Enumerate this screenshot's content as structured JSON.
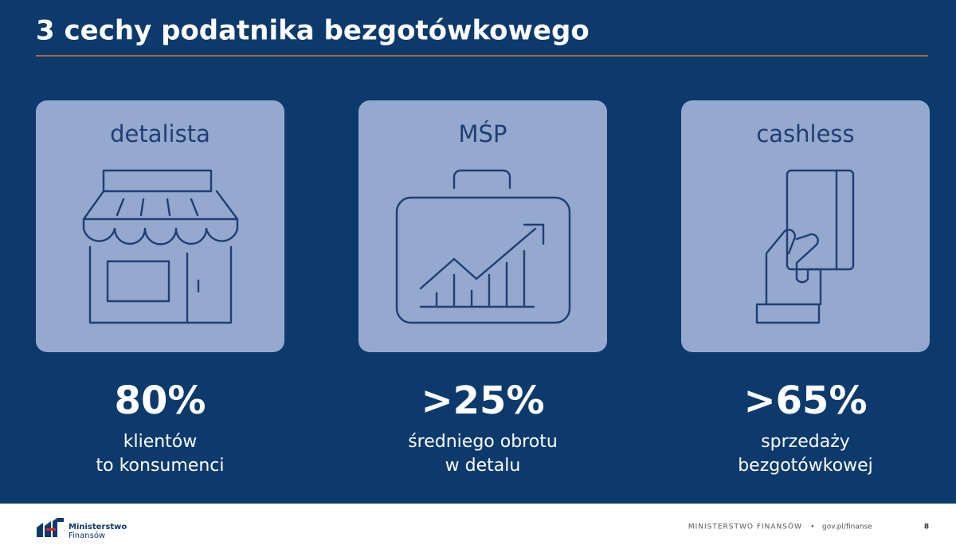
{
  "header": {
    "title": "3 cechy podatnika bezgotówkowego"
  },
  "cards": [
    {
      "label": "detalista",
      "stat": "80%",
      "caption": [
        "klientów",
        "to konsumenci"
      ]
    },
    {
      "label": "MŚP",
      "stat": ">25%",
      "caption": [
        "średniego obrotu",
        "w detalu"
      ]
    },
    {
      "label": "cashless",
      "stat": ">65%",
      "caption": [
        "sprzedaży",
        "bezgotówkowej"
      ]
    }
  ],
  "footer": {
    "logo": [
      "Ministerstwo",
      "Finansów"
    ],
    "org": "MINISTERSTWO FINANSÓW",
    "separator": "•",
    "url": "gov.pl/finanse",
    "page": "8"
  }
}
